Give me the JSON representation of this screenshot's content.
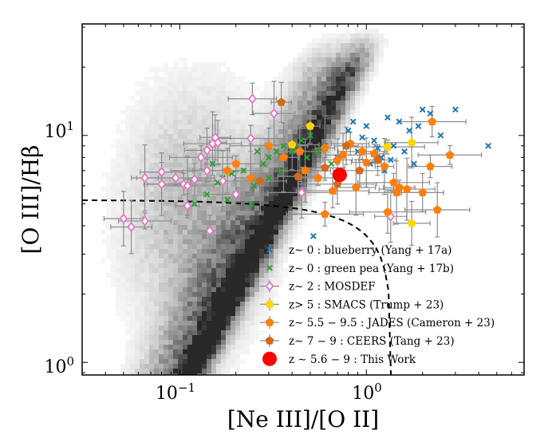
{
  "chart_data": {
    "type": "scatter",
    "title": "",
    "xlabel": "[Ne III]/[O II]",
    "ylabel": "[O III]/Hβ",
    "xscale": "log",
    "yscale": "log",
    "xlim": [
      0.03,
      7.0
    ],
    "ylim": [
      0.88,
      31.0
    ],
    "x_ticks": [
      {
        "value": 0.1,
        "label": "10⁻¹"
      },
      {
        "value": 1.0,
        "label": "10⁰"
      }
    ],
    "y_ticks": [
      {
        "value": 1.0,
        "label": "10⁰"
      },
      {
        "value": 10.0,
        "label": "10¹"
      }
    ],
    "legend_position": "lower-right",
    "background": "SDSS local galaxies (grey density map)",
    "demarcation_line": "dashed black curve",
    "series": [
      {
        "name": "blueberry (Yang+17a)",
        "legend_label": "z∼ 0 :  blueberry (Yang + 17a)",
        "marker": "x",
        "color": "#1f77b4",
        "points": [
          [
            0.9,
            8.5
          ],
          [
            1.0,
            11.0
          ],
          [
            1.1,
            9.5
          ],
          [
            1.3,
            12.0
          ],
          [
            1.5,
            11.5
          ],
          [
            1.7,
            10.5
          ],
          [
            2.0,
            13.0
          ],
          [
            1.2,
            8.0
          ],
          [
            1.4,
            9.0
          ],
          [
            1.6,
            8.5
          ],
          [
            2.5,
            10.0
          ],
          [
            3.0,
            13.0
          ],
          [
            4.5,
            9.0
          ],
          [
            0.8,
            10.5
          ],
          [
            0.95,
            9.8
          ],
          [
            1.05,
            7.5
          ],
          [
            1.15,
            8.8
          ],
          [
            1.25,
            7.0
          ],
          [
            1.8,
            7.5
          ],
          [
            2.2,
            12.5
          ],
          [
            0.7,
            8.0
          ],
          [
            0.85,
            11.5
          ],
          [
            1.35,
            7.8
          ],
          [
            1.9,
            11.0
          ],
          [
            0.52,
            3.6
          ]
        ]
      },
      {
        "name": "green pea (Yang+17b)",
        "legend_label": "z∼ 0 :  green pea (Yang + 17b)",
        "marker": "x",
        "color": "#2ca02c",
        "points": [
          [
            0.15,
            7.5
          ],
          [
            0.17,
            6.5
          ],
          [
            0.19,
            6.8
          ],
          [
            0.2,
            5.5
          ],
          [
            0.22,
            7.0
          ],
          [
            0.25,
            6.0
          ],
          [
            0.28,
            7.5
          ],
          [
            0.3,
            8.0
          ],
          [
            0.33,
            8.5
          ],
          [
            0.36,
            9.0
          ],
          [
            0.4,
            8.5
          ],
          [
            0.45,
            9.5
          ],
          [
            0.5,
            10.0
          ],
          [
            0.55,
            8.5
          ],
          [
            0.6,
            9.0
          ],
          [
            0.65,
            7.5
          ],
          [
            0.3,
            6.5
          ],
          [
            0.35,
            7.0
          ],
          [
            0.42,
            9.0
          ],
          [
            0.26,
            8.5
          ],
          [
            0.16,
            6.2
          ],
          [
            0.14,
            5.5
          ],
          [
            0.12,
            5.0
          ],
          [
            0.18,
            5.2
          ],
          [
            0.24,
            5.0
          ],
          [
            0.48,
            8.0
          ]
        ]
      },
      {
        "name": "MOSDEF",
        "legend_label": "z∼ 2 :  MOSDEF",
        "marker": "diamond-open",
        "color": "#e377c2",
        "points": [
          [
            0.05,
            4.3
          ],
          [
            0.055,
            3.95
          ],
          [
            0.065,
            4.2
          ],
          [
            0.065,
            6.5
          ],
          [
            0.08,
            6.9
          ],
          [
            0.08,
            6.1
          ],
          [
            0.095,
            6.5
          ],
          [
            0.105,
            6.1
          ],
          [
            0.11,
            6.0
          ],
          [
            0.12,
            6.4
          ],
          [
            0.11,
            4.9
          ],
          [
            0.13,
            8.0
          ],
          [
            0.14,
            7.0
          ],
          [
            0.14,
            8.6
          ],
          [
            0.145,
            3.8
          ],
          [
            0.15,
            9.2
          ],
          [
            0.155,
            9.8
          ],
          [
            0.16,
            9.3
          ],
          [
            0.17,
            6.3
          ],
          [
            0.2,
            5.5
          ],
          [
            0.24,
            9.7
          ],
          [
            0.245,
            14.5
          ],
          [
            0.32,
            12.5
          ],
          [
            0.45,
            5.6
          ],
          [
            1.35,
            4.4
          ]
        ]
      },
      {
        "name": "SMACS (Trump+23)",
        "legend_label": "z> 5 :  SMACS (Trump + 23)",
        "marker": "pentagon",
        "color": "#ffd600",
        "points": [
          [
            0.4,
            9.1
          ],
          [
            0.5,
            11.0
          ],
          [
            1.3,
            8.9
          ],
          [
            1.75,
            9.3
          ],
          [
            1.75,
            4.1
          ]
        ]
      },
      {
        "name": "JADES (Cameron+23)",
        "legend_label": "z∼ 5.5 − 9.5 :  JADES (Cameron + 23)",
        "marker": "pentagon",
        "color": "#ff7f0e",
        "points": [
          [
            0.18,
            7.0
          ],
          [
            0.2,
            7.5
          ],
          [
            0.24,
            6.5
          ],
          [
            0.3,
            9.0
          ],
          [
            0.36,
            8.0
          ],
          [
            0.44,
            8.5
          ],
          [
            0.47,
            7.0
          ],
          [
            0.55,
            6.5
          ],
          [
            0.6,
            8.8
          ],
          [
            0.66,
            5.7
          ],
          [
            0.7,
            7.8
          ],
          [
            0.75,
            8.2
          ],
          [
            0.82,
            9.2
          ],
          [
            0.88,
            5.9
          ],
          [
            0.95,
            8.5
          ],
          [
            1.0,
            7.6
          ],
          [
            1.1,
            8.3
          ],
          [
            1.25,
            7.3
          ],
          [
            1.4,
            6.2
          ],
          [
            1.45,
            5.6
          ],
          [
            1.5,
            5.9
          ],
          [
            1.65,
            5.8
          ],
          [
            2.0,
            5.6
          ],
          [
            2.2,
            7.3
          ],
          [
            2.25,
            11.5
          ],
          [
            2.8,
            8.2
          ],
          [
            1.3,
            4.6
          ],
          [
            2.4,
            4.7
          ],
          [
            0.6,
            4.5
          ]
        ]
      },
      {
        "name": "CEERS (Tang+23)",
        "legend_label": "z∼ 7 − 9 :  CEERS (Tang + 23)",
        "marker": "pentagon",
        "color": "#d2691e",
        "points": [
          [
            0.35,
            14.0
          ],
          [
            0.43,
            6.6
          ],
          [
            0.27,
            6.3
          ],
          [
            0.6,
            7.2
          ],
          [
            0.78,
            9.0
          ],
          [
            0.92,
            7.0
          ],
          [
            1.15,
            7.8
          ],
          [
            0.7,
            6.1
          ]
        ]
      },
      {
        "name": "This Work",
        "legend_label": "z ∼ 5.6 − 9 :  This Work",
        "marker": "circle",
        "color": "#ff0000",
        "points": [
          [
            0.72,
            6.7
          ]
        ]
      }
    ]
  }
}
